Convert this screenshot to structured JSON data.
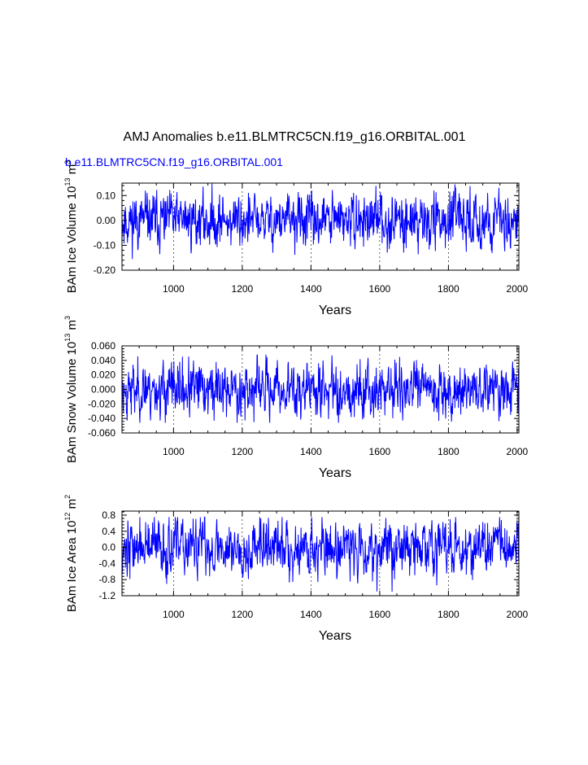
{
  "title": "AMJ Anomalies b.e11.BLMTRC5CN.f19_g16.ORBITAL.001",
  "subtitle": "b.e11.BLMTRC5CN.f19_g16.ORBITAL.001",
  "colors": {
    "series": "#0000ff",
    "axis": "#000000",
    "grid": "#000000",
    "subtitle": "#0000ff"
  },
  "chart_data": [
    {
      "type": "line",
      "ylabel": {
        "text": "BAm Ice Volume 10",
        "sup1": "13",
        "mid": " m",
        "sup2": "3"
      },
      "xlabel": "Years",
      "xlim": [
        850,
        2005
      ],
      "ylim": [
        -0.2,
        0.15
      ],
      "xticks": [
        1000,
        1200,
        1400,
        1600,
        1800,
        2000
      ],
      "yticks": [
        -0.2,
        -0.1,
        0.0,
        0.1
      ],
      "ytick_labels": [
        "-0.20",
        "-0.10",
        "0.00",
        "0.10"
      ],
      "grid": "vertical dashed",
      "series": {
        "name": "BAm Ice Volume anomaly",
        "x_start": 850,
        "x_end": 2005,
        "amplitude": 0.045,
        "min": -0.155,
        "max": 0.15,
        "seed": 11
      }
    },
    {
      "type": "line",
      "ylabel": {
        "text": "BAm Snow Volume 10",
        "sup1": "13",
        "mid": " m",
        "sup2": "3"
      },
      "xlabel": "Years",
      "xlim": [
        850,
        2005
      ],
      "ylim": [
        -0.06,
        0.06
      ],
      "xticks": [
        1000,
        1200,
        1400,
        1600,
        1800,
        2000
      ],
      "yticks": [
        -0.06,
        -0.04,
        -0.02,
        0.0,
        0.02,
        0.04,
        0.06
      ],
      "ytick_labels": [
        "-0.060",
        "-0.040",
        "-0.020",
        "0.000",
        "0.020",
        "0.040",
        "0.060"
      ],
      "grid": "vertical dashed",
      "series": {
        "name": "BAm Snow Volume anomaly",
        "x_start": 850,
        "x_end": 2005,
        "amplitude": 0.016,
        "min": -0.046,
        "max": 0.048,
        "seed": 23
      }
    },
    {
      "type": "line",
      "ylabel": {
        "text": "BAm Ice Area 10",
        "sup1": "12",
        "mid": " m",
        "sup2": "2"
      },
      "xlabel": "Years",
      "xlim": [
        850,
        2005
      ],
      "ylim": [
        -1.2,
        0.9
      ],
      "xticks": [
        1000,
        1200,
        1400,
        1600,
        1800,
        2000
      ],
      "yticks": [
        -1.2,
        -0.8,
        -0.4,
        0.0,
        0.4,
        0.8
      ],
      "ytick_labels": [
        "-1.2",
        "-0.8",
        "-0.4",
        "0.0",
        "0.4",
        "0.8"
      ],
      "grid": "vertical dashed",
      "series": {
        "name": "BAm Ice Area anomaly",
        "x_start": 850,
        "x_end": 2005,
        "amplitude": 0.3,
        "min": -1.1,
        "max": 0.75,
        "seed": 37
      }
    }
  ]
}
